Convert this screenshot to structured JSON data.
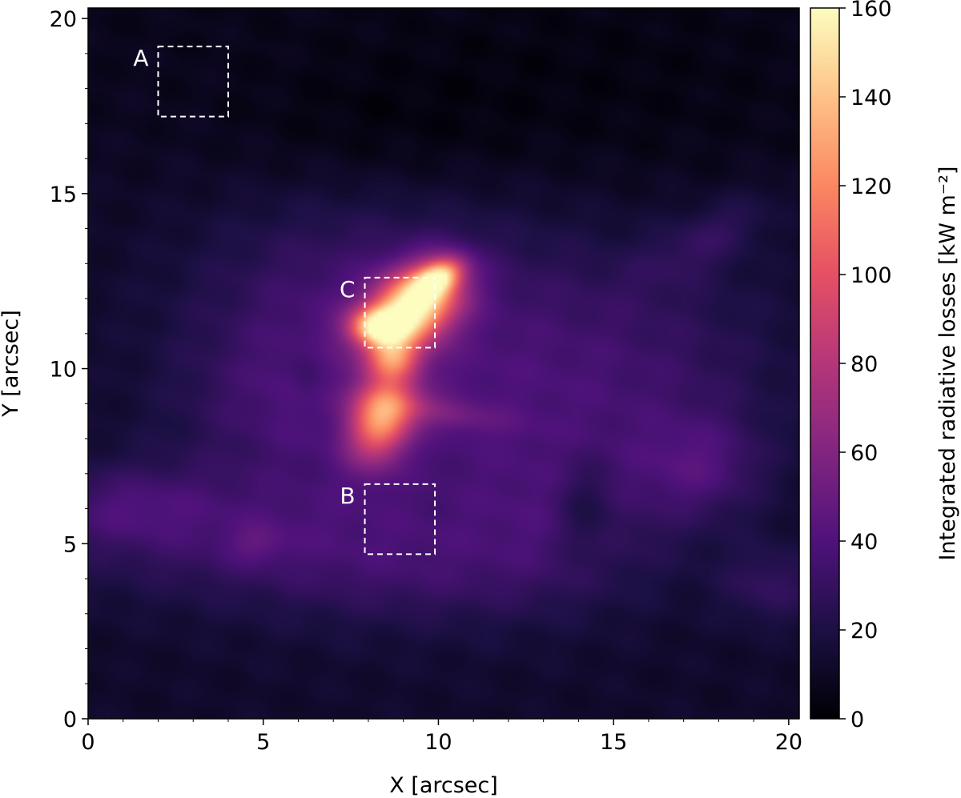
{
  "chart_data": {
    "type": "heatmap",
    "xlabel": "X [arcsec]",
    "ylabel": "Y [arcsec]",
    "xlim": [
      0,
      20.3
    ],
    "ylim": [
      0,
      20.3
    ],
    "x_ticks": [
      0,
      5,
      10,
      15,
      20
    ],
    "y_ticks": [
      0,
      5,
      10,
      15,
      20
    ],
    "colormap": "magma",
    "colorbar": {
      "label": "Integrated radiative losses [kW m⁻²]",
      "range": [
        0,
        160
      ],
      "ticks": [
        0,
        20,
        40,
        60,
        80,
        100,
        120,
        140,
        160
      ]
    },
    "regions": [
      {
        "label": "A",
        "x": [
          2.0,
          4.0
        ],
        "y": [
          17.2,
          19.2
        ]
      },
      {
        "label": "B",
        "x": [
          7.9,
          9.9
        ],
        "y": [
          4.7,
          6.7
        ]
      },
      {
        "label": "C",
        "x": [
          7.9,
          9.9
        ],
        "y": [
          10.6,
          12.6
        ]
      }
    ],
    "features": [
      {
        "x": 9.3,
        "y": 11.8,
        "sx": 1.0,
        "sy": 0.7,
        "rot": 35,
        "peak": 130
      },
      {
        "x": 8.3,
        "y": 11.2,
        "sx": 0.55,
        "sy": 0.35,
        "rot": 0,
        "peak": 90
      },
      {
        "x": 10.0,
        "y": 12.6,
        "sx": 0.5,
        "sy": 0.3,
        "rot": 30,
        "peak": 80
      },
      {
        "x": 8.7,
        "y": 10.3,
        "sx": 0.5,
        "sy": 0.4,
        "rot": 0,
        "peak": 55
      },
      {
        "x": 8.4,
        "y": 8.6,
        "sx": 0.6,
        "sy": 0.9,
        "rot": -20,
        "peak": 90
      },
      {
        "x": 9.8,
        "y": 8.8,
        "sx": 1.4,
        "sy": 0.3,
        "rot": -10,
        "peak": 20
      },
      {
        "x": 10.5,
        "y": 9.5,
        "sx": 4.5,
        "sy": 3.5,
        "rot": 20,
        "peak": 22
      },
      {
        "x": 7.0,
        "y": 12.0,
        "sx": 3.0,
        "sy": 2.5,
        "rot": 0,
        "peak": 14
      },
      {
        "x": 4.5,
        "y": 5.2,
        "sx": 4.5,
        "sy": 1.3,
        "rot": 0,
        "peak": 17
      },
      {
        "x": 1.0,
        "y": 6.1,
        "sx": 1.8,
        "sy": 0.8,
        "rot": 0,
        "peak": 16
      },
      {
        "x": 4.8,
        "y": 5.0,
        "sx": 0.6,
        "sy": 0.4,
        "rot": 0,
        "peak": 12
      },
      {
        "x": 17.5,
        "y": 7.2,
        "sx": 1.2,
        "sy": 1.0,
        "rot": 0,
        "peak": 18
      },
      {
        "x": 19.5,
        "y": 3.8,
        "sx": 1.0,
        "sy": 0.8,
        "rot": 0,
        "peak": 16
      },
      {
        "x": 17.8,
        "y": 13.8,
        "sx": 1.5,
        "sy": 0.6,
        "rot": 30,
        "peak": 14
      },
      {
        "x": 16.0,
        "y": 9.0,
        "sx": 3.0,
        "sy": 2.5,
        "rot": 30,
        "peak": 12
      },
      {
        "x": 13.5,
        "y": 5.5,
        "sx": 2.0,
        "sy": 1.5,
        "rot": 0,
        "peak": 10
      },
      {
        "x": 14.2,
        "y": 6.0,
        "sx": 0.6,
        "sy": 1.0,
        "rot": 0,
        "peak": -15
      },
      {
        "x": 10.0,
        "y": 4.0,
        "sx": 3.0,
        "sy": 1.0,
        "rot": 0,
        "peak": 8
      },
      {
        "x": 5.5,
        "y": 9.0,
        "sx": 2.0,
        "sy": 1.5,
        "rot": 0,
        "peak": 10
      },
      {
        "x": 6.3,
        "y": 9.8,
        "sx": 0.4,
        "sy": 0.7,
        "rot": 0,
        "peak": -10
      },
      {
        "x": 8.0,
        "y": 16.5,
        "sx": 3.0,
        "sy": 1.5,
        "rot": 0,
        "peak": -6
      },
      {
        "x": 14.0,
        "y": 17.0,
        "sx": 5.0,
        "sy": 2.5,
        "rot": 0,
        "peak": -6
      }
    ]
  }
}
